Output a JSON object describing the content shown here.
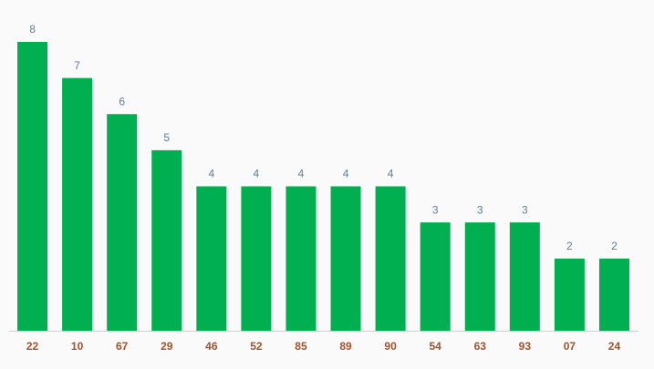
{
  "chart_data": {
    "type": "bar",
    "categories": [
      "22",
      "10",
      "67",
      "29",
      "46",
      "52",
      "85",
      "89",
      "90",
      "54",
      "63",
      "93",
      "07",
      "24"
    ],
    "values": [
      8,
      7,
      6,
      5,
      4,
      4,
      4,
      4,
      4,
      3,
      3,
      3,
      2,
      2
    ],
    "color": "#00b050",
    "ylim": [
      0,
      8
    ]
  }
}
